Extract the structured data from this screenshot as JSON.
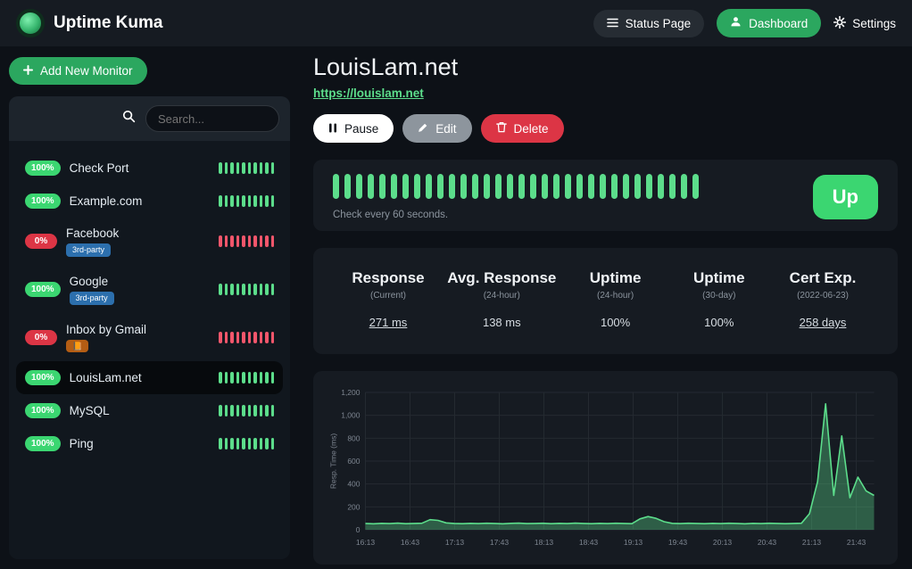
{
  "colors": {
    "up_green": "#5cdd8b",
    "down_bar_red": "#f2566b",
    "pill_green": "#3bd671",
    "pill_red": "#dc3545",
    "button_green": "#2ba75f",
    "grid": "#242a31",
    "area_fill": "rgba(92,221,139,0.35)"
  },
  "navbar": {
    "brand": "Uptime Kuma",
    "status_page": "Status Page",
    "dashboard": "Dashboard",
    "settings": "Settings"
  },
  "sidebar": {
    "add_monitor": "Add New Monitor",
    "search_placeholder": "Search...",
    "monitors": [
      {
        "uptime": "100%",
        "name": "Check Port",
        "status": "up",
        "tags": []
      },
      {
        "uptime": "100%",
        "name": "Example.com",
        "status": "up",
        "tags": []
      },
      {
        "uptime": "0%",
        "name": "Facebook",
        "status": "down",
        "tags": [
          {
            "label": "3rd-party",
            "color": "#2c6fad"
          }
        ]
      },
      {
        "uptime": "100%",
        "name": "Google",
        "status": "up",
        "tags": [
          {
            "label": "3rd-party",
            "color": "#2c6fad"
          }
        ]
      },
      {
        "uptime": "0%",
        "name": "Inbox by Gmail",
        "status": "down",
        "tags": [
          {
            "label": "📙",
            "color": "#b45d14"
          }
        ]
      },
      {
        "uptime": "100%",
        "name": "LouisLam.net",
        "status": "up",
        "tags": [],
        "selected": true
      },
      {
        "uptime": "100%",
        "name": "MySQL",
        "status": "up",
        "tags": []
      },
      {
        "uptime": "100%",
        "name": "Ping",
        "status": "up",
        "tags": []
      }
    ]
  },
  "main": {
    "title": "LouisLam.net",
    "url": "https://louislam.net",
    "pause": "Pause",
    "edit": "Edit",
    "delete": "Delete",
    "up_label": "Up",
    "check_text": "Check every 60 seconds.",
    "heartbeat_count": 32,
    "stats": [
      {
        "label": "Response",
        "sub": "(Current)",
        "value": "271 ms",
        "underline": true
      },
      {
        "label": "Avg. Response",
        "sub": "(24-hour)",
        "value": "138 ms",
        "underline": false
      },
      {
        "label": "Uptime",
        "sub": "(24-hour)",
        "value": "100%",
        "underline": false
      },
      {
        "label": "Uptime",
        "sub": "(30-day)",
        "value": "100%",
        "underline": false
      },
      {
        "label": "Cert Exp.",
        "sub": "(2022-06-23)",
        "value": "258 days",
        "underline": true
      }
    ]
  },
  "chart_data": {
    "type": "area",
    "title": "",
    "xlabel": "",
    "ylabel": "Resp. Time (ms)",
    "ylim": [
      0,
      1200
    ],
    "yticks": [
      "0",
      "200",
      "400",
      "600",
      "800",
      "1,000",
      "1,200"
    ],
    "x": [
      "16:13",
      "16:43",
      "17:13",
      "17:43",
      "18:13",
      "18:43",
      "19:13",
      "19:43",
      "20:13",
      "20:43",
      "21:13",
      "21:43"
    ],
    "values": [
      55,
      52,
      56,
      54,
      58,
      53,
      55,
      57,
      88,
      82,
      60,
      55,
      53,
      56,
      54,
      57,
      55,
      52,
      56,
      58,
      54,
      55,
      57,
      53,
      56,
      54,
      58,
      55,
      53,
      56,
      54,
      57,
      55,
      53,
      95,
      115,
      100,
      70,
      56,
      54,
      57,
      55,
      53,
      56,
      54,
      57,
      55,
      52,
      56,
      54,
      57,
      55,
      53,
      55,
      57,
      140,
      420,
      1100,
      300,
      820,
      280,
      460,
      340,
      300
    ],
    "grid": true,
    "legend": false
  }
}
